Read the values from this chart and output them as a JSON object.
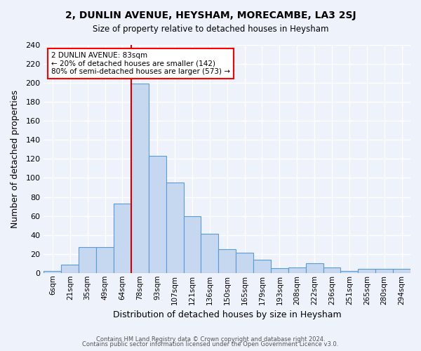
{
  "title": "2, DUNLIN AVENUE, HEYSHAM, MORECAMBE, LA3 2SJ",
  "subtitle": "Size of property relative to detached houses in Heysham",
  "xlabel": "Distribution of detached houses by size in Heysham",
  "ylabel": "Number of detached properties",
  "bar_labels": [
    "6sqm",
    "21sqm",
    "35sqm",
    "49sqm",
    "64sqm",
    "78sqm",
    "93sqm",
    "107sqm",
    "121sqm",
    "136sqm",
    "150sqm",
    "165sqm",
    "179sqm",
    "193sqm",
    "208sqm",
    "222sqm",
    "236sqm",
    "251sqm",
    "265sqm",
    "280sqm",
    "294sqm"
  ],
  "bar_values": [
    2,
    9,
    27,
    27,
    73,
    199,
    123,
    95,
    60,
    41,
    25,
    21,
    14,
    5,
    6,
    10,
    6,
    2,
    4,
    4,
    4
  ],
  "bar_color": "#c5d8f0",
  "bar_edge_color": "#5b9bd5",
  "vline_index": 5,
  "annotation_title": "2 DUNLIN AVENUE: 83sqm",
  "annotation_line1": "← 20% of detached houses are smaller (142)",
  "annotation_line2": "80% of semi-detached houses are larger (573) →",
  "vline_color": "#cc0000",
  "ylim": [
    0,
    240
  ],
  "yticks": [
    0,
    20,
    40,
    60,
    80,
    100,
    120,
    140,
    160,
    180,
    200,
    220,
    240
  ],
  "footer1": "Contains HM Land Registry data © Crown copyright and database right 2024.",
  "footer2": "Contains public sector information licensed under the Open Government Licence v3.0.",
  "bg_color": "#eef2fb",
  "grid_color": "#ffffff"
}
